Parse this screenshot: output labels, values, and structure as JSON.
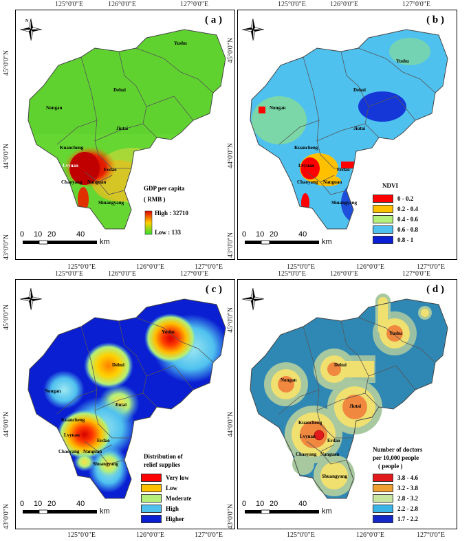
{
  "ticks_top": {
    "lon1": "125°0'0\"E",
    "lon2": "126°0'0\"E",
    "lon3": "127°0'0\"E"
  },
  "ticks_left": {
    "lat1": "45°0'0\"N",
    "lat2": "44°0'0\"N",
    "lat3": "43°0'0\"N"
  },
  "compass": {
    "n": "N",
    "s": "S",
    "e": "E",
    "w": "W"
  },
  "scale": {
    "t0": "0",
    "t1": "10",
    "t2": "20",
    "t3": "40",
    "unit": "km"
  },
  "panels": {
    "a": {
      "label": "( a )",
      "legend_title1": "GDP per capita",
      "legend_title2": "( RMB )",
      "high": "High : 32710",
      "low": "Low : 133"
    },
    "b": {
      "label": "( b )",
      "legend_title": "NDVI",
      "classes": [
        "0  -  0.2",
        "0.2 - 0.4",
        "0.4 - 0.6",
        "0.6 - 0.8",
        "0.8 -  1"
      ],
      "colors": [
        "#ff0000",
        "#ffc000",
        "#b4f07a",
        "#4fc1ef",
        "#0a1ed2"
      ]
    },
    "c": {
      "label": "( c )",
      "legend_title1": "Distribution of",
      "legend_title2": "relief supplies",
      "classes": [
        "Very low",
        "Low",
        "Moderate",
        "High",
        "Higher"
      ],
      "colors": [
        "#ff0000",
        "#ffc000",
        "#b4f07a",
        "#4fc1ef",
        "#0a1ed2"
      ]
    },
    "d": {
      "label": "( d )",
      "legend_title1": "Number of doctors",
      "legend_title2": "per 10,000 people",
      "legend_title3": "( people )",
      "classes": [
        "3.8 - 4.6",
        "3.2 - 3.8",
        "2.8 - 3.2",
        "2.2 - 2.8",
        "1.7 - 2.2"
      ],
      "colors": [
        "#e31a1c",
        "#f0a030",
        "#c8e6a0",
        "#3ab4e6",
        "#1428c8"
      ]
    }
  },
  "cities": {
    "yushu": "Yushu",
    "dehui": "Dehui",
    "nongan": "Nongan",
    "jiutai": "Jiutai",
    "kuancheng": "Kuancheng",
    "lvyuan": "Lvyuan",
    "erdao": "Erdao",
    "chaoyang": "Chaoyang",
    "nanguan": "Nanguan",
    "shuangyang": "Shuangyang"
  }
}
